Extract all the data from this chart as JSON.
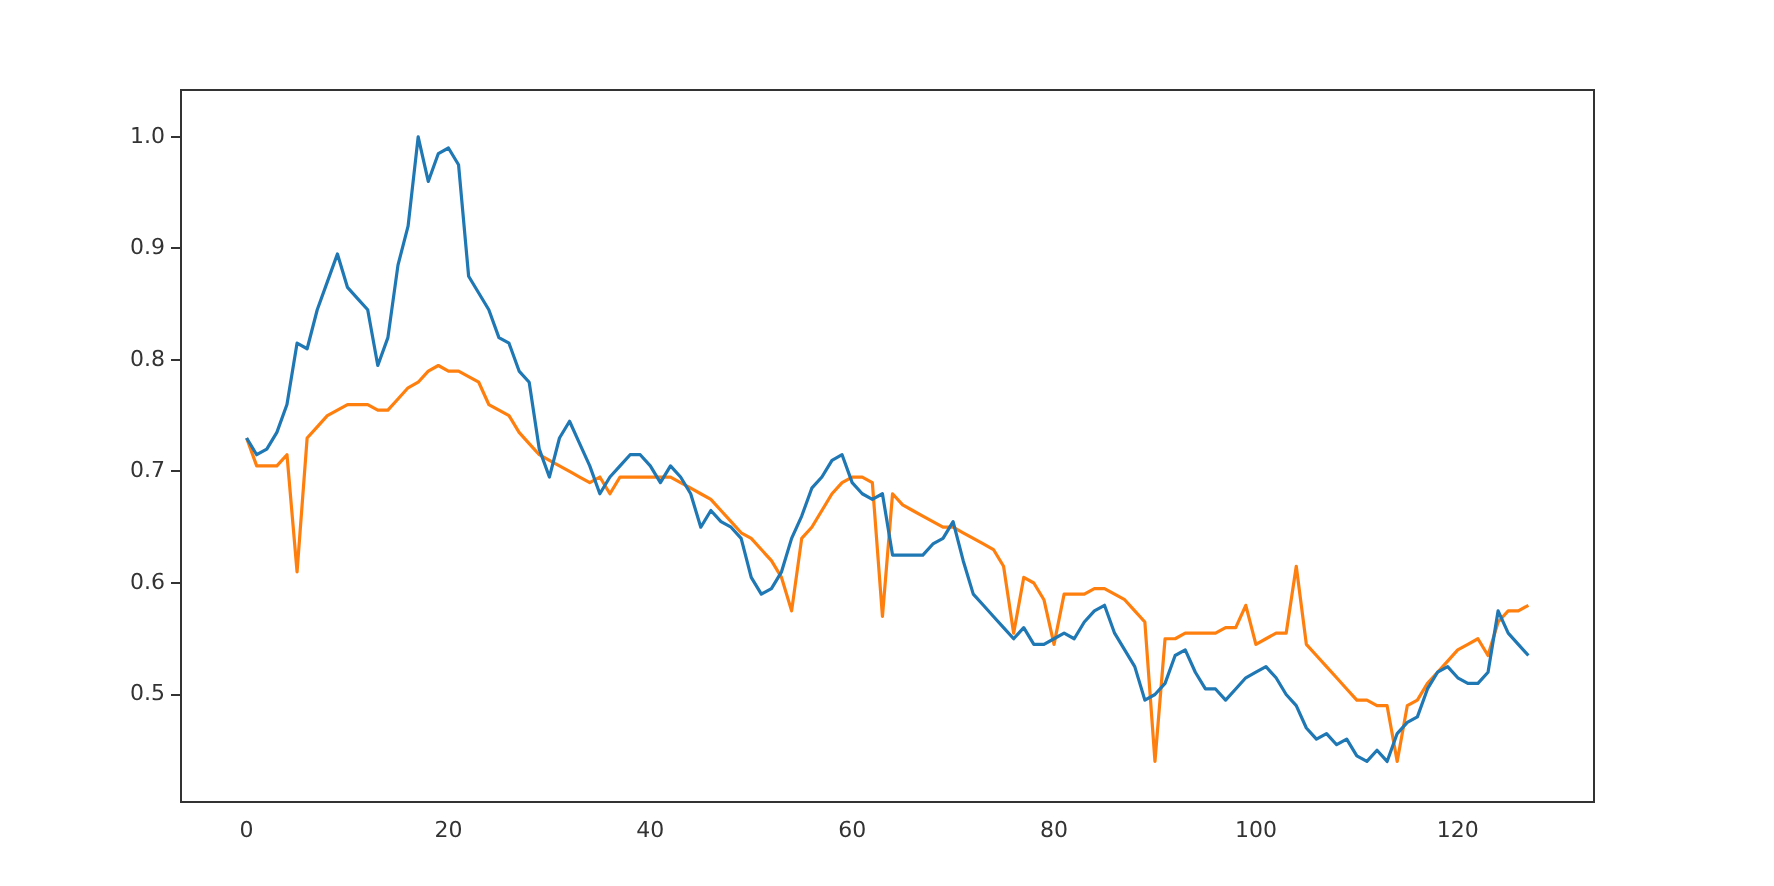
{
  "chart_data": {
    "type": "line",
    "x": [
      0,
      1,
      2,
      3,
      4,
      5,
      6,
      7,
      8,
      9,
      10,
      11,
      12,
      13,
      14,
      15,
      16,
      17,
      18,
      19,
      20,
      21,
      22,
      23,
      24,
      25,
      26,
      27,
      28,
      29,
      30,
      31,
      32,
      33,
      34,
      35,
      36,
      37,
      38,
      39,
      40,
      41,
      42,
      43,
      44,
      45,
      46,
      47,
      48,
      49,
      50,
      51,
      52,
      53,
      54,
      55,
      56,
      57,
      58,
      59,
      60,
      61,
      62,
      63,
      64,
      65,
      66,
      67,
      68,
      69,
      70,
      71,
      72,
      73,
      74,
      75,
      76,
      77,
      78,
      79,
      80,
      81,
      82,
      83,
      84,
      85,
      86,
      87,
      88,
      89,
      90,
      91,
      92,
      93,
      94,
      95,
      96,
      97,
      98,
      99,
      100,
      101,
      102,
      103,
      104,
      105,
      106,
      107,
      108,
      109,
      110,
      111,
      112,
      113,
      114,
      115,
      116,
      117,
      118,
      119,
      120,
      121,
      122,
      123,
      124,
      125,
      126,
      127
    ],
    "series": [
      {
        "color": "#1f77b4",
        "values": [
          0.73,
          0.715,
          0.72,
          0.735,
          0.76,
          0.815,
          0.81,
          0.845,
          0.87,
          0.895,
          0.865,
          0.855,
          0.845,
          0.795,
          0.82,
          0.885,
          0.92,
          1.0,
          0.96,
          0.985,
          0.99,
          0.975,
          0.875,
          0.86,
          0.845,
          0.82,
          0.815,
          0.79,
          0.78,
          0.72,
          0.695,
          0.73,
          0.745,
          0.725,
          0.705,
          0.68,
          0.695,
          0.705,
          0.715,
          0.715,
          0.705,
          0.69,
          0.705,
          0.695,
          0.68,
          0.65,
          0.665,
          0.655,
          0.65,
          0.64,
          0.605,
          0.59,
          0.595,
          0.61,
          0.64,
          0.66,
          0.685,
          0.695,
          0.71,
          0.715,
          0.69,
          0.68,
          0.675,
          0.68,
          0.625,
          0.625,
          0.625,
          0.625,
          0.635,
          0.64,
          0.655,
          0.62,
          0.59,
          0.58,
          0.57,
          0.56,
          0.55,
          0.56,
          0.545,
          0.545,
          0.55,
          0.555,
          0.55,
          0.565,
          0.575,
          0.58,
          0.555,
          0.54,
          0.525,
          0.495,
          0.5,
          0.51,
          0.535,
          0.54,
          0.52,
          0.505,
          0.505,
          0.495,
          0.505,
          0.515,
          0.52,
          0.525,
          0.515,
          0.5,
          0.49,
          0.47,
          0.46,
          0.465,
          0.455,
          0.46,
          0.445,
          0.44,
          0.45,
          0.44,
          0.465,
          0.475,
          0.48,
          0.505,
          0.52,
          0.525,
          0.515,
          0.51,
          0.51,
          0.52,
          0.575,
          0.555,
          0.545,
          0.535
        ]
      },
      {
        "color": "#ff7f0e",
        "values": [
          0.73,
          0.705,
          0.705,
          0.705,
          0.715,
          0.61,
          0.73,
          0.74,
          0.75,
          0.755,
          0.76,
          0.76,
          0.76,
          0.755,
          0.755,
          0.765,
          0.775,
          0.78,
          0.79,
          0.795,
          0.79,
          0.79,
          0.785,
          0.78,
          0.76,
          0.755,
          0.75,
          0.735,
          0.725,
          0.715,
          0.71,
          0.705,
          0.7,
          0.695,
          0.69,
          0.695,
          0.68,
          0.695,
          0.695,
          0.695,
          0.695,
          0.695,
          0.695,
          0.69,
          0.685,
          0.68,
          0.675,
          0.665,
          0.655,
          0.645,
          0.64,
          0.63,
          0.62,
          0.605,
          0.575,
          0.64,
          0.65,
          0.665,
          0.68,
          0.69,
          0.695,
          0.695,
          0.69,
          0.57,
          0.68,
          0.67,
          0.665,
          0.66,
          0.655,
          0.65,
          0.65,
          0.645,
          0.64,
          0.635,
          0.63,
          0.615,
          0.555,
          0.605,
          0.6,
          0.585,
          0.545,
          0.59,
          0.59,
          0.59,
          0.595,
          0.595,
          0.59,
          0.585,
          0.575,
          0.565,
          0.44,
          0.55,
          0.55,
          0.555,
          0.555,
          0.555,
          0.555,
          0.56,
          0.56,
          0.58,
          0.545,
          0.55,
          0.555,
          0.555,
          0.615,
          0.545,
          0.535,
          0.525,
          0.515,
          0.505,
          0.495,
          0.495,
          0.49,
          0.49,
          0.44,
          0.49,
          0.495,
          0.51,
          0.52,
          0.53,
          0.54,
          0.545,
          0.55,
          0.535,
          0.565,
          0.575,
          0.575,
          0.58
        ]
      }
    ],
    "xlim": [
      -6.5,
      133.5
    ],
    "ylim": [
      0.404,
      1.042
    ],
    "xticks": [
      0,
      20,
      40,
      60,
      80,
      100,
      120
    ],
    "yticks": [
      {
        "value": 0.5,
        "label": "0.5"
      },
      {
        "value": 0.6,
        "label": "0.6"
      },
      {
        "value": 0.7,
        "label": "0.7"
      },
      {
        "value": 0.8,
        "label": "0.8"
      },
      {
        "value": 0.9,
        "label": "0.9"
      },
      {
        "value": 1.0,
        "label": "1.0"
      }
    ],
    "grid": false,
    "legend": false,
    "marker": "none",
    "line_style": "solid"
  }
}
